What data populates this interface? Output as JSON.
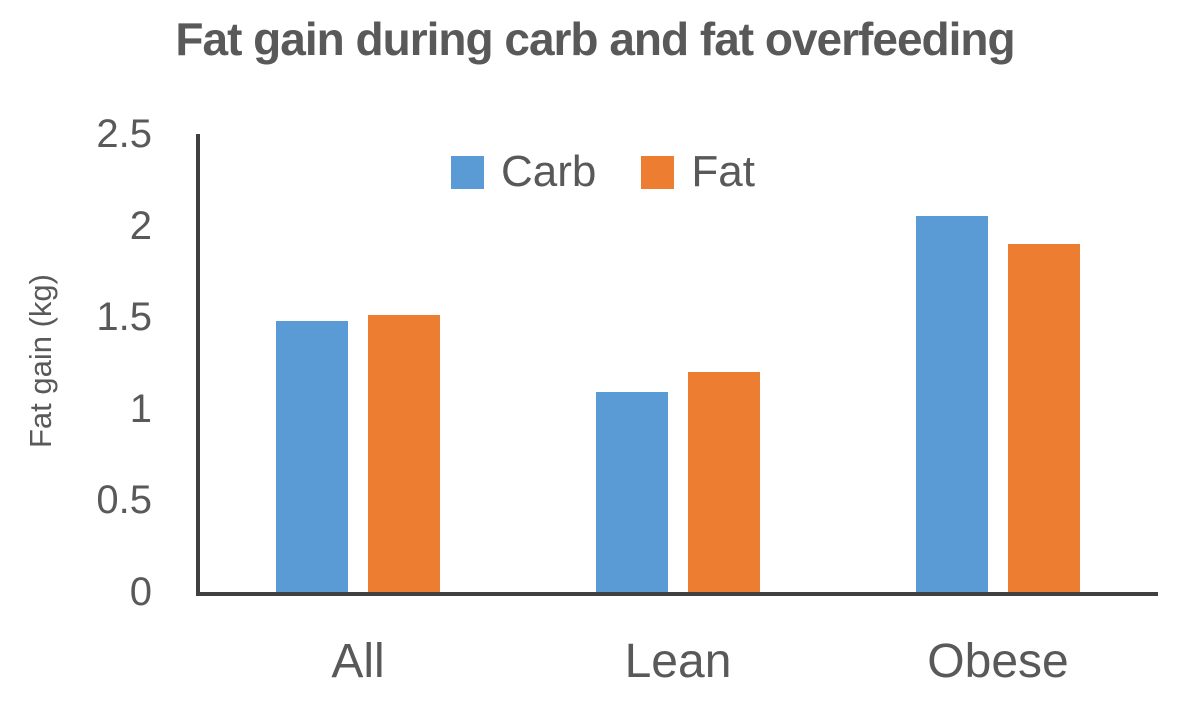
{
  "chart_data": {
    "type": "bar",
    "title": "Fat gain during carb and fat overfeeding",
    "ylabel": "Fat gain (kg)",
    "xlabel": "",
    "categories": [
      "All",
      "Lean",
      "Obese"
    ],
    "series": [
      {
        "name": "Carb",
        "color": "#5B9BD5",
        "values": [
          1.48,
          1.09,
          2.05
        ]
      },
      {
        "name": "Fat",
        "color": "#ED7D31",
        "values": [
          1.51,
          1.2,
          1.9
        ]
      }
    ],
    "ylim": [
      0,
      2.5
    ],
    "yticks": [
      0,
      0.5,
      1,
      1.5,
      2,
      2.5
    ],
    "ytick_labels": [
      "0",
      "0.5",
      "1",
      "1.5",
      "2",
      "2.5"
    ],
    "legend_position": "top-center",
    "grid": false,
    "text_color": "#595959",
    "axis_color": "#404040"
  }
}
